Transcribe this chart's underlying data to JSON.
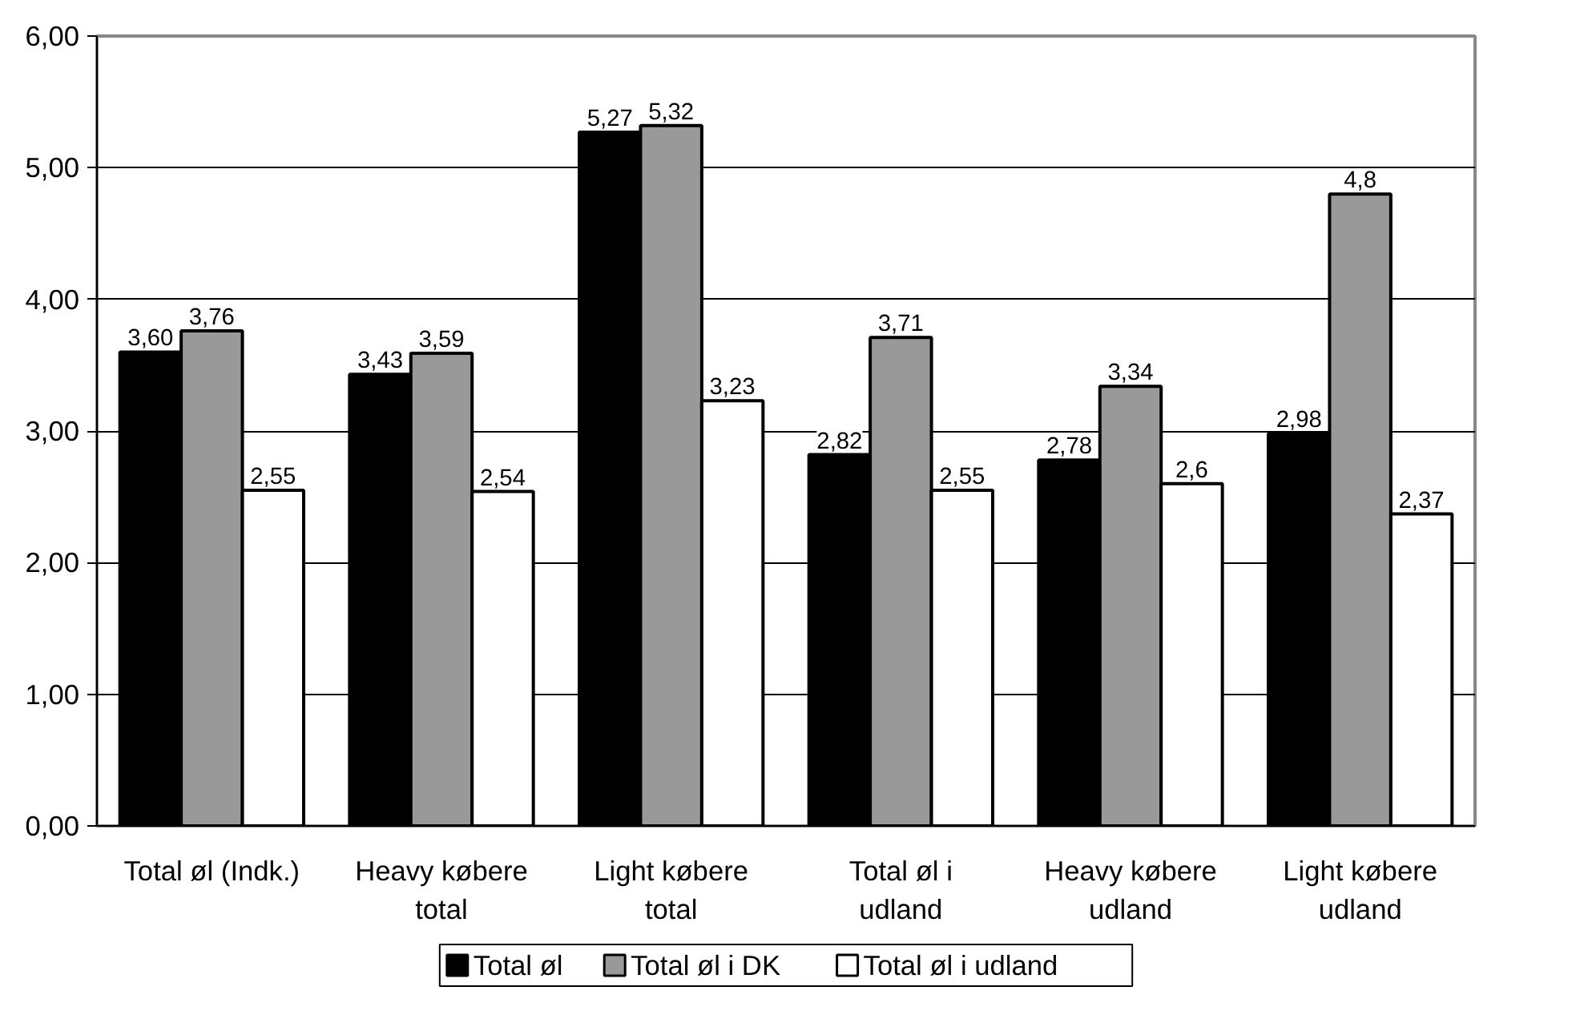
{
  "chart_data": {
    "type": "bar",
    "categories": [
      "Total øl (Indk.)",
      "Heavy købere total",
      "Light købere total",
      "Total øl i udland",
      "Heavy købere udland",
      "Light købere udland"
    ],
    "series": [
      {
        "name": "Total øl",
        "color": "#000000",
        "values": [
          3.6,
          3.43,
          5.27,
          2.82,
          2.78,
          2.98
        ],
        "value_labels": [
          "3,60",
          "3,43",
          "5,27",
          "2,82",
          "2,78",
          "2,98"
        ]
      },
      {
        "name": "Total øl i DK",
        "color": "#999999",
        "values": [
          3.76,
          3.59,
          5.32,
          3.71,
          3.34,
          4.8
        ],
        "value_labels": [
          "3,76",
          "3,59",
          "5,32",
          "3,71",
          "3,34",
          "4,8"
        ]
      },
      {
        "name": "Total øl i udland",
        "color": "#ffffff",
        "values": [
          2.55,
          2.54,
          3.23,
          2.55,
          2.6,
          2.37
        ],
        "value_labels": [
          "2,55",
          "2,54",
          "3,23",
          "2,55",
          "2,6",
          "2,37"
        ]
      }
    ],
    "ylim": [
      0,
      6
    ],
    "yticks": [
      {
        "value": 0,
        "label": "0,00"
      },
      {
        "value": 1,
        "label": "1,00"
      },
      {
        "value": 2,
        "label": "2,00"
      },
      {
        "value": 3,
        "label": "3,00"
      },
      {
        "value": 4,
        "label": "4,00"
      },
      {
        "value": 5,
        "label": "5,00"
      },
      {
        "value": 6,
        "label": "6,00"
      }
    ],
    "grid": "y",
    "legend": "bottom"
  }
}
